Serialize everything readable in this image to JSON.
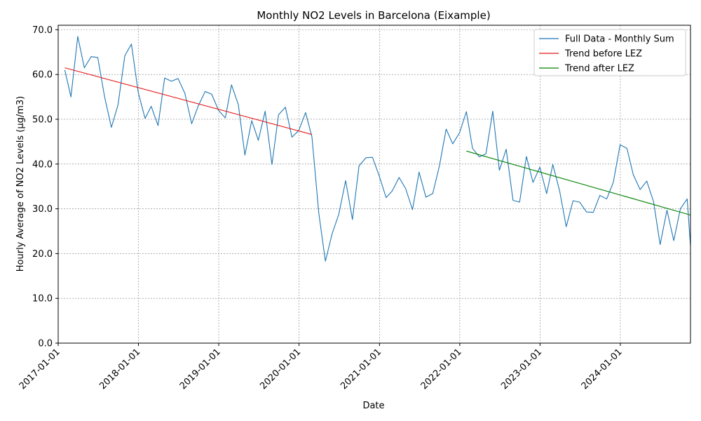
{
  "chart_data": {
    "type": "line",
    "title": "Monthly NO2 Levels in Barcelona (Eixample)",
    "xlabel": "Date",
    "ylabel": "Hourly Average of NO2 Levels (µg/m3)",
    "x_type": "date",
    "xlim": [
      "2017-01-01",
      "2024-11-15"
    ],
    "ylim": [
      0,
      71
    ],
    "x_ticks": [
      "2017-01-01",
      "2018-01-01",
      "2019-01-01",
      "2020-01-01",
      "2021-01-01",
      "2022-01-01",
      "2023-01-01",
      "2024-01-01"
    ],
    "y_ticks": [
      0,
      10,
      20,
      30,
      40,
      50,
      60,
      70
    ],
    "y_tick_labels": [
      "0.0",
      "10.0",
      "20.0",
      "30.0",
      "40.0",
      "50.0",
      "60.0",
      "70.0"
    ],
    "grid": true,
    "legend_position": "top-right",
    "series": [
      {
        "name": "Full Data - Monthly Sum",
        "color": "#1f77b4",
        "points": [
          [
            "2017-01-31",
            61.0
          ],
          [
            "2017-02-28",
            55.0
          ],
          [
            "2017-03-31",
            68.5
          ],
          [
            "2017-04-30",
            61.5
          ],
          [
            "2017-05-31",
            64.0
          ],
          [
            "2017-06-30",
            63.8
          ],
          [
            "2017-07-31",
            55.0
          ],
          [
            "2017-08-31",
            48.2
          ],
          [
            "2017-09-30",
            53.2
          ],
          [
            "2017-10-31",
            64.2
          ],
          [
            "2017-11-30",
            66.8
          ],
          [
            "2017-12-31",
            56.0
          ],
          [
            "2018-01-31",
            50.2
          ],
          [
            "2018-02-28",
            52.9
          ],
          [
            "2018-03-31",
            48.6
          ],
          [
            "2018-04-30",
            59.2
          ],
          [
            "2018-05-31",
            58.5
          ],
          [
            "2018-06-30",
            59.1
          ],
          [
            "2018-07-31",
            55.8
          ],
          [
            "2018-08-31",
            49.0
          ],
          [
            "2018-09-30",
            53.0
          ],
          [
            "2018-10-31",
            56.2
          ],
          [
            "2018-11-30",
            55.6
          ],
          [
            "2018-12-31",
            52.0
          ],
          [
            "2019-01-31",
            50.3
          ],
          [
            "2019-02-28",
            57.7
          ],
          [
            "2019-03-31",
            53.3
          ],
          [
            "2019-04-30",
            42.0
          ],
          [
            "2019-05-31",
            49.7
          ],
          [
            "2019-06-30",
            45.3
          ],
          [
            "2019-07-31",
            51.8
          ],
          [
            "2019-08-31",
            39.9
          ],
          [
            "2019-09-30",
            51.0
          ],
          [
            "2019-10-31",
            52.7
          ],
          [
            "2019-11-30",
            46.0
          ],
          [
            "2019-12-31",
            47.5
          ],
          [
            "2020-01-31",
            51.5
          ],
          [
            "2020-02-29",
            46.0
          ],
          [
            "2020-03-31",
            29.0
          ],
          [
            "2020-04-30",
            18.3
          ],
          [
            "2020-05-31",
            24.5
          ],
          [
            "2020-06-30",
            28.8
          ],
          [
            "2020-07-31",
            36.3
          ],
          [
            "2020-08-31",
            27.6
          ],
          [
            "2020-09-30",
            39.6
          ],
          [
            "2020-10-31",
            41.4
          ],
          [
            "2020-11-30",
            41.5
          ],
          [
            "2020-12-31",
            37.3
          ],
          [
            "2021-01-31",
            32.5
          ],
          [
            "2021-02-28",
            34.0
          ],
          [
            "2021-03-31",
            37.0
          ],
          [
            "2021-04-30",
            34.5
          ],
          [
            "2021-05-31",
            29.8
          ],
          [
            "2021-06-30",
            38.2
          ],
          [
            "2021-07-31",
            32.6
          ],
          [
            "2021-08-31",
            33.4
          ],
          [
            "2021-09-30",
            39.5
          ],
          [
            "2021-10-31",
            47.8
          ],
          [
            "2021-11-30",
            44.5
          ],
          [
            "2021-12-31",
            47.0
          ],
          [
            "2022-01-31",
            51.7
          ],
          [
            "2022-02-28",
            43.5
          ],
          [
            "2022-03-31",
            41.6
          ],
          [
            "2022-04-30",
            42.3
          ],
          [
            "2022-05-31",
            51.8
          ],
          [
            "2022-06-30",
            38.6
          ],
          [
            "2022-07-31",
            43.3
          ],
          [
            "2022-08-31",
            31.9
          ],
          [
            "2022-09-30",
            31.5
          ],
          [
            "2022-10-31",
            41.7
          ],
          [
            "2022-11-30",
            35.9
          ],
          [
            "2022-12-31",
            39.3
          ],
          [
            "2023-01-31",
            33.4
          ],
          [
            "2023-02-28",
            39.9
          ],
          [
            "2023-03-31",
            34.0
          ],
          [
            "2023-04-30",
            26.0
          ],
          [
            "2023-05-31",
            31.8
          ],
          [
            "2023-06-30",
            31.5
          ],
          [
            "2023-07-31",
            29.3
          ],
          [
            "2023-08-31",
            29.2
          ],
          [
            "2023-09-30",
            33.0
          ],
          [
            "2023-10-31",
            32.2
          ],
          [
            "2023-11-30",
            35.9
          ],
          [
            "2023-12-31",
            44.3
          ],
          [
            "2024-01-31",
            43.5
          ],
          [
            "2024-02-29",
            37.6
          ],
          [
            "2024-03-31",
            34.3
          ],
          [
            "2024-04-30",
            36.2
          ],
          [
            "2024-05-31",
            31.6
          ],
          [
            "2024-06-30",
            22.0
          ],
          [
            "2024-07-31",
            29.7
          ],
          [
            "2024-08-31",
            22.9
          ],
          [
            "2024-09-30",
            30.0
          ],
          [
            "2024-10-31",
            32.2
          ],
          [
            "2024-11-15",
            21.7
          ]
        ]
      },
      {
        "name": "Trend before LEZ",
        "color": "#e41a1c",
        "points": [
          [
            "2017-01-31",
            61.5
          ],
          [
            "2020-02-29",
            46.6
          ]
        ]
      },
      {
        "name": "Trend after LEZ",
        "color": "#008000",
        "points": [
          [
            "2022-01-31",
            42.9
          ],
          [
            "2024-11-15",
            28.6
          ]
        ]
      }
    ]
  }
}
